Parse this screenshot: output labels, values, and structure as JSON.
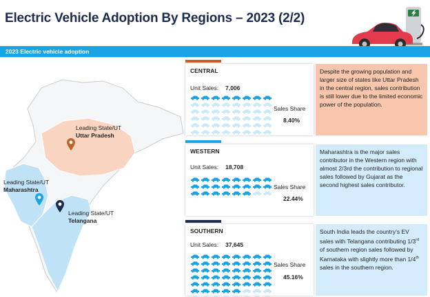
{
  "header": {
    "title": "Electric Vehicle Adoption By Regions – 2023 (2/2)"
  },
  "banner": {
    "label": "2023 Electric vehicle adoption"
  },
  "map": {
    "pins": [
      {
        "caption": "Leading State/UT",
        "state": "Uttar Pradesh",
        "color": "#c0632b"
      },
      {
        "caption": "Leading State/UT",
        "state": "Maharashtra",
        "color": "#1aa3e4"
      },
      {
        "caption": "Leading State/UT",
        "state": "Telangana",
        "color": "#1b2a4e"
      }
    ]
  },
  "regions": [
    {
      "name": "CENTRAL",
      "unit_sales_label": "Unit Sales:",
      "unit_sales": "7,006",
      "share_label": "Sales Share",
      "share": "8.40%",
      "share_value": 8.4,
      "bar_color": "#c0632b",
      "desc_bg": "#f7c6ac",
      "desc_prefix": "Despite the growing population and larger size of states like Uttar Pradesh in the central region, sales contribution is still lower due to the limited economic power of the population."
    },
    {
      "name": "WESTERN",
      "unit_sales_label": "Unit Sales:",
      "unit_sales": "18,708",
      "share_label": "Sales Share",
      "share": "22.44%",
      "share_value": 22.44,
      "bar_color": "#1aa3e4",
      "desc_bg": "#d3ecfb",
      "desc_prefix": "Maharashtra is the major sales contributor in the Western region with almost 2/3rd the contribution to regional sales followed by Gujarat as the second highest sales contributor."
    },
    {
      "name": "SOUTHERN",
      "unit_sales_label": "Unit Sales:",
      "unit_sales": "37,645",
      "share_label": "Sales Share",
      "share": "45.16%",
      "share_value": 45.16,
      "bar_color": "#1b2a4e",
      "desc_bg": "#d3ecfb",
      "desc_prefix": "South India leads the country’s EV sales with Telangana contributing 1/3",
      "desc_sup1": "rd",
      "desc_mid": " of southern region sales followed by Karnataka with slightly more than 1/4",
      "desc_sup2": "th",
      "desc_suffix": " sales in the southern region."
    }
  ],
  "colors": {
    "car_filled": "#1aa3e4",
    "car_empty": "#c9e8f8",
    "title": "#1b2a4e"
  },
  "icons": {
    "header": "electric-car-charging-icon",
    "unit": "car-icon",
    "pin": "map-pin-icon"
  }
}
